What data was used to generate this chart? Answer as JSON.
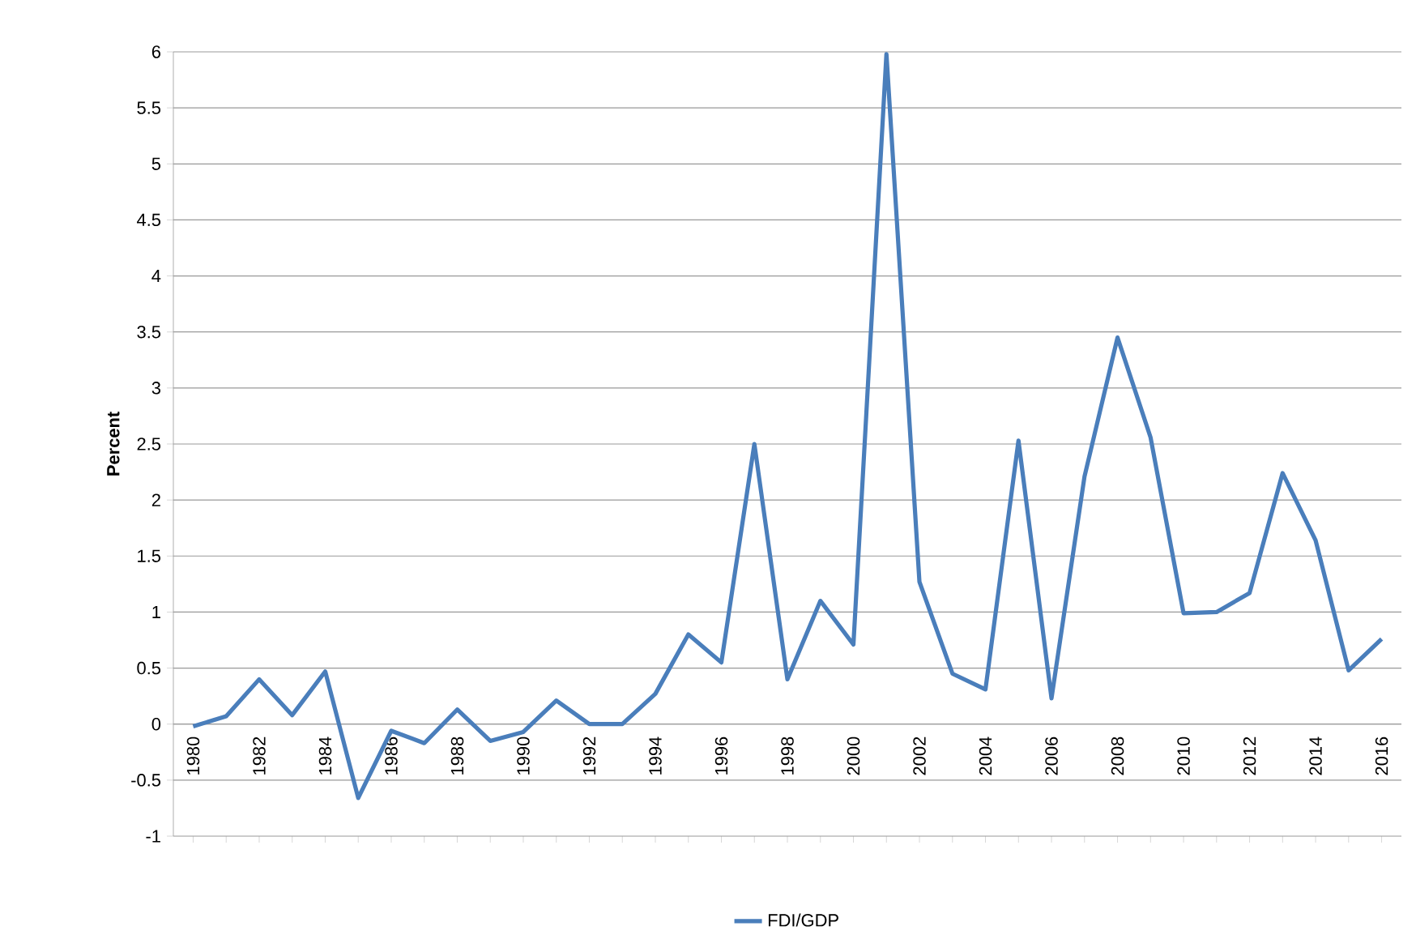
{
  "chart_data": {
    "type": "line",
    "ylabel": "Percent",
    "categories": [
      "1980",
      null,
      "1982",
      null,
      "1984",
      null,
      "1986",
      null,
      "1988",
      null,
      "1990",
      null,
      "1992",
      null,
      "1994",
      null,
      "1996",
      null,
      "1998",
      null,
      "2000",
      null,
      "2002",
      null,
      "2004",
      null,
      "2006",
      null,
      "2008",
      null,
      "2010",
      null,
      "2012",
      null,
      "2014",
      null,
      "2016"
    ],
    "series": [
      {
        "name": "FDI/GDP",
        "color": "#4a7ebb",
        "values": [
          -0.02,
          0.07,
          0.4,
          0.08,
          0.47,
          -0.66,
          -0.06,
          -0.17,
          0.13,
          -0.15,
          -0.07,
          0.21,
          0.0,
          0.0,
          0.27,
          0.8,
          0.55,
          2.5,
          0.4,
          1.1,
          0.71,
          5.98,
          1.27,
          0.45,
          0.31,
          2.53,
          0.23,
          2.21,
          3.45,
          2.56,
          0.99,
          1.0,
          1.17,
          2.24,
          1.64,
          0.48,
          0.76
        ]
      }
    ],
    "ylim": [
      -1,
      6
    ],
    "yticks": [
      -1,
      -0.5,
      0,
      0.5,
      1,
      1.5,
      2,
      2.5,
      3,
      3.5,
      4,
      4.5,
      5,
      5.5,
      6
    ],
    "grid": "y",
    "legend": "bottom",
    "marker": "none",
    "line_style": "solid"
  }
}
